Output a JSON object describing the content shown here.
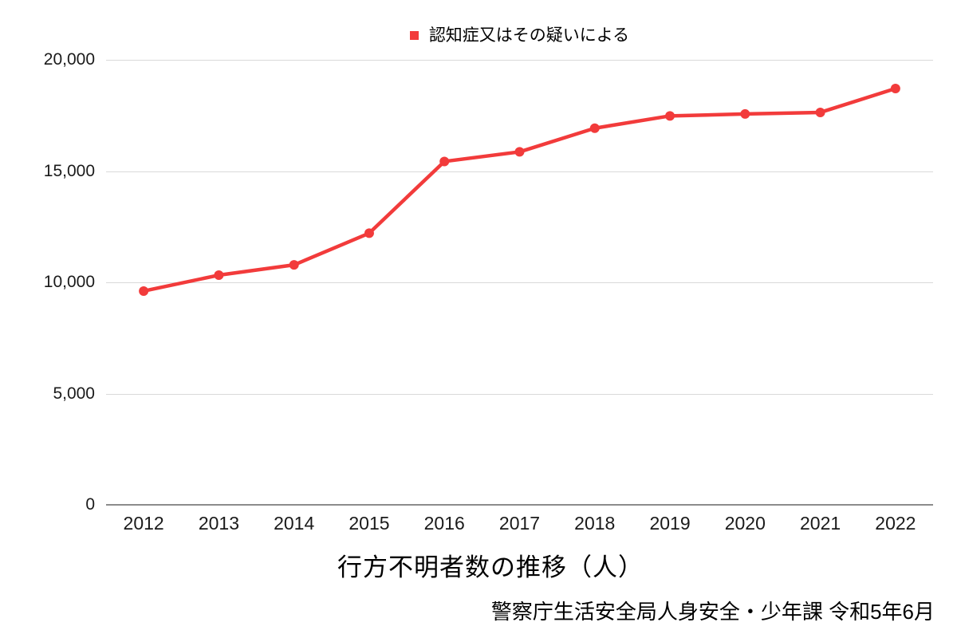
{
  "legend": {
    "label": "認知症又はその疑いによる",
    "marker_color": "#f23b3b"
  },
  "title": "行方不明者数の推移（人）",
  "source": "警察庁生活安全局人身安全・少年課 令和5年6月",
  "colors": {
    "series": "#f23b3b",
    "gridline": "#d9d9d9",
    "axis_line": "#8c8c8c",
    "text": "#1a1a1a"
  },
  "chart_data": {
    "type": "line",
    "title": "行方不明者数の推移（人）",
    "xlabel": "",
    "ylabel": "",
    "categories": [
      "2012",
      "2013",
      "2014",
      "2015",
      "2016",
      "2017",
      "2018",
      "2019",
      "2020",
      "2021",
      "2022"
    ],
    "series": [
      {
        "name": "認知症又はその疑いによる",
        "color": "#f23b3b",
        "values": [
          9607,
          10322,
          10783,
          12208,
          15432,
          15863,
          16927,
          17479,
          17565,
          17636,
          18709
        ]
      }
    ],
    "ylim": [
      0,
      20000
    ],
    "y_ticks": [
      0,
      5000,
      10000,
      15000,
      20000
    ],
    "y_tick_labels": [
      "0",
      "5,000",
      "10,000",
      "15,000",
      "20,000"
    ],
    "grid": "horizontal",
    "legend_position": "top",
    "marker": "circle",
    "source_note": "警察庁生活安全局人身安全・少年課 令和5年6月"
  }
}
